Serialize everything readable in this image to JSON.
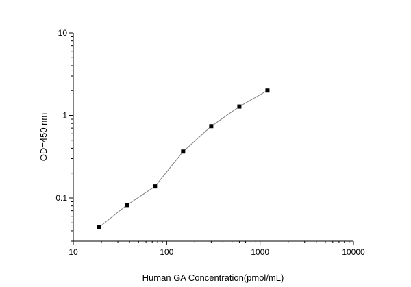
{
  "chart_data": {
    "type": "scatter",
    "xlabel": "Human GA Concentration(pmol/mL)",
    "ylabel": "OD=450 nm",
    "x_scale": "log",
    "y_scale": "log",
    "xlim": [
      10,
      10000
    ],
    "ylim": [
      0.03,
      10
    ],
    "x_ticks": [
      10,
      100,
      1000,
      10000
    ],
    "x_tick_labels": [
      "10",
      "100",
      "1000",
      "10000"
    ],
    "y_ticks": [
      0.1,
      1,
      10
    ],
    "y_tick_labels": [
      "0.1",
      "1",
      "10"
    ],
    "grid": false,
    "series": [
      {
        "x": [
          18.75,
          37.5,
          75,
          150,
          300,
          600,
          1200
        ],
        "y": [
          0.044,
          0.082,
          0.138,
          0.365,
          0.74,
          1.28,
          2.0
        ],
        "marker": "square",
        "color": "#000000",
        "line_color": "#808080"
      }
    ]
  }
}
